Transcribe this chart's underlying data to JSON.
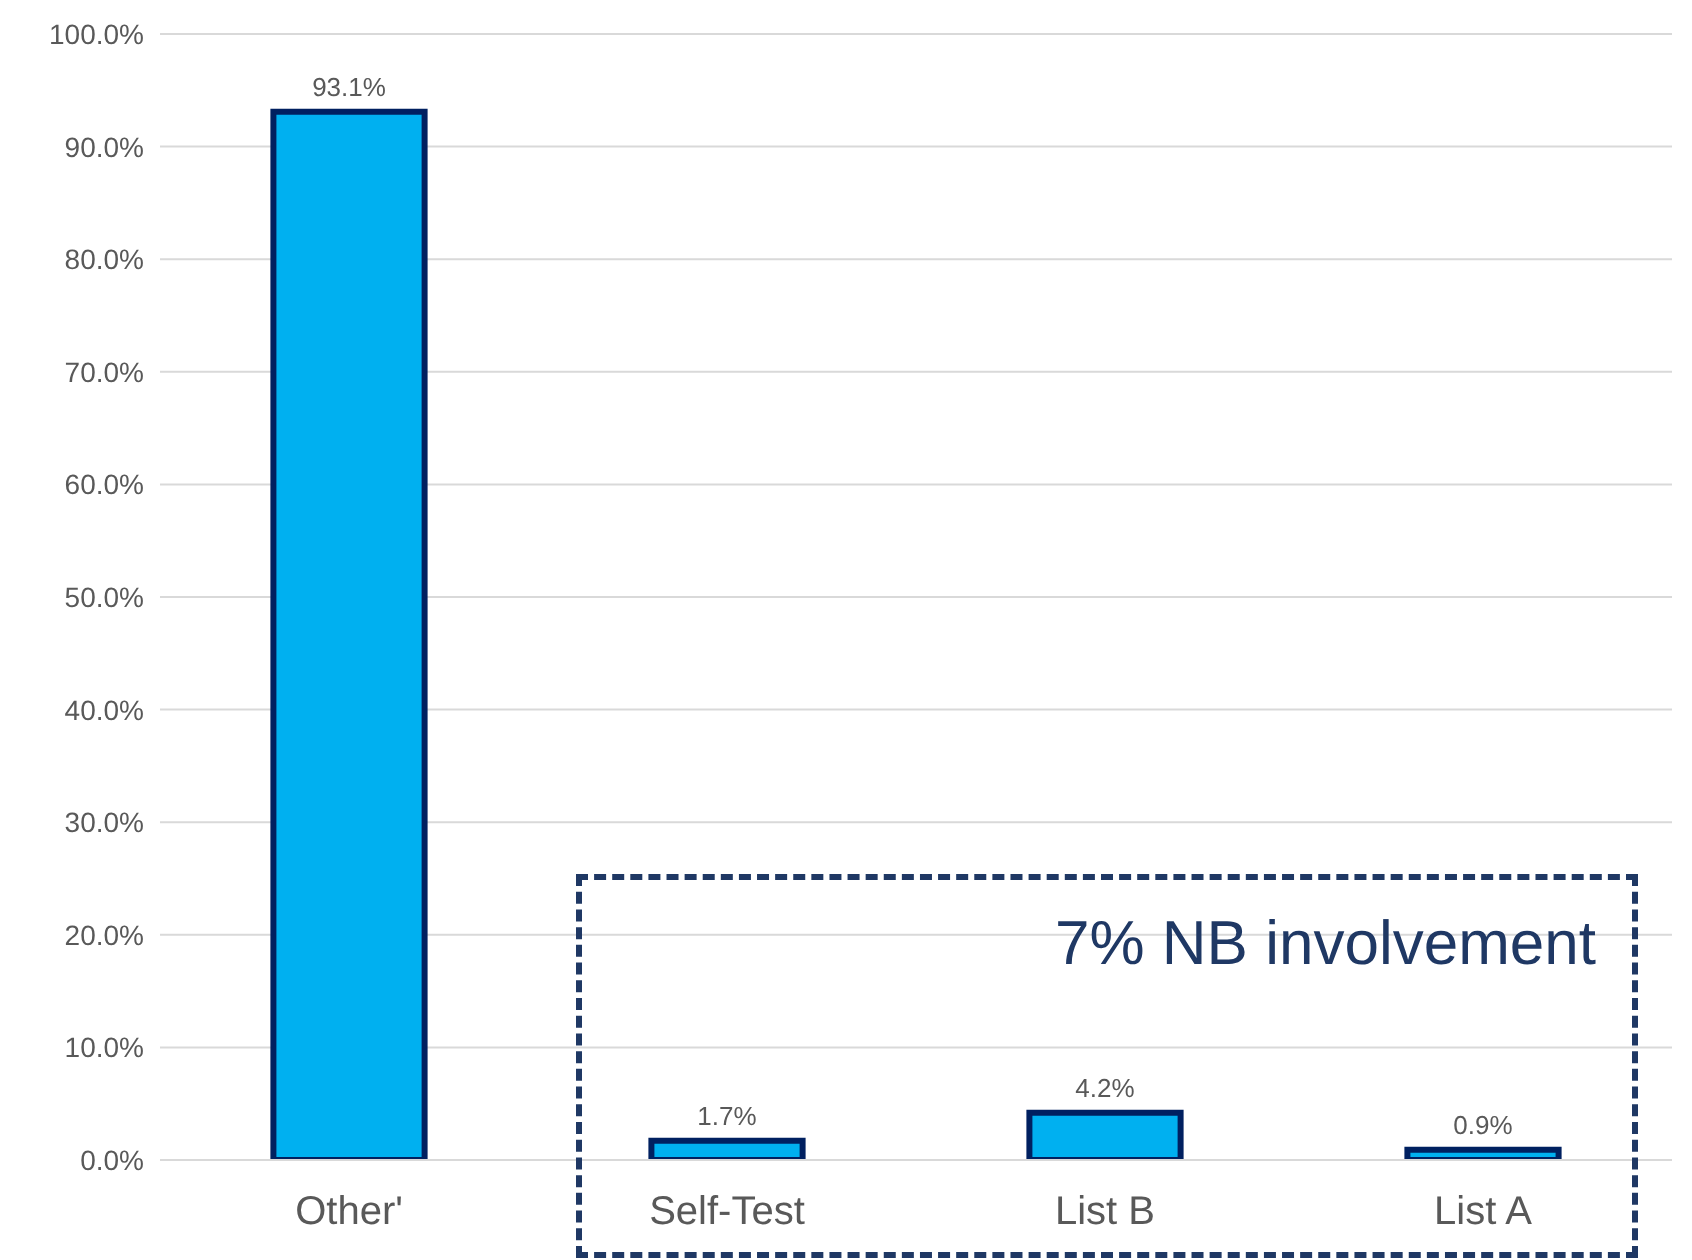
{
  "chart_data": {
    "type": "bar",
    "categories": [
      "Other'",
      "Self-Test",
      "List B",
      "List A"
    ],
    "values": [
      93.1,
      1.7,
      4.2,
      0.9
    ],
    "value_labels": [
      "93.1%",
      "1.7%",
      "4.2%",
      "0.9%"
    ],
    "color": "#00b0f0",
    "ylim": [
      0,
      100
    ],
    "yticks": [
      {
        "value": 0,
        "label": "0.0%"
      },
      {
        "value": 10,
        "label": "10.0%"
      },
      {
        "value": 20,
        "label": "20.0%"
      },
      {
        "value": 30,
        "label": "30.0%"
      },
      {
        "value": 40,
        "label": "40.0%"
      },
      {
        "value": 50,
        "label": "50.0%"
      },
      {
        "value": 60,
        "label": "60.0%"
      },
      {
        "value": 70,
        "label": "70.0%"
      },
      {
        "value": 80,
        "label": "80.0%"
      },
      {
        "value": 90,
        "label": "90.0%"
      },
      {
        "value": 100,
        "label": "100.0%"
      }
    ],
    "grid": "y",
    "annotations": [
      "7% NB involvement"
    ]
  }
}
